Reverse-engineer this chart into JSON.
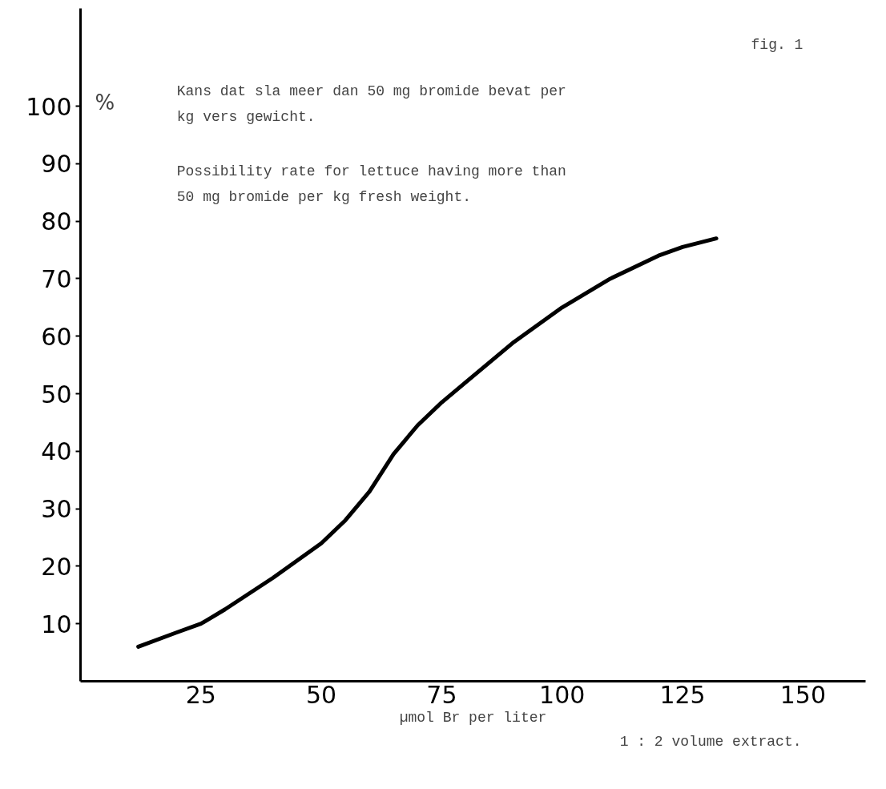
{
  "chart_data": {
    "type": "line",
    "ylabel": "%",
    "xlabel": "µmol Br per liter",
    "annotations": [
      "fig. 1",
      "Kans dat sla meer dan 50 mg bromide bevat per\nkg vers gewicht.",
      "Possibility rate for lettuce having more than\n50 mg bromide per kg fresh weight.",
      "1 : 2 volume extract."
    ],
    "x": [
      12,
      20,
      25,
      30,
      40,
      50,
      55,
      60,
      65,
      70,
      75,
      80,
      90,
      100,
      110,
      120,
      125,
      132
    ],
    "series": [
      {
        "color": "#000000",
        "values": [
          6,
          8.5,
          10,
          12.5,
          18,
          24,
          28,
          33,
          39.5,
          44.5,
          48.5,
          52,
          59,
          65,
          70,
          74,
          75.5,
          77
        ]
      }
    ],
    "xlim": [
      0,
      163
    ],
    "ylim": [
      0,
      117
    ],
    "xticks": [
      25,
      50,
      75,
      100,
      125,
      150
    ],
    "yticks": [
      10,
      20,
      30,
      40,
      50,
      60,
      70,
      80,
      90,
      100
    ],
    "grid": false,
    "marker": "none",
    "line_style": "solid"
  }
}
